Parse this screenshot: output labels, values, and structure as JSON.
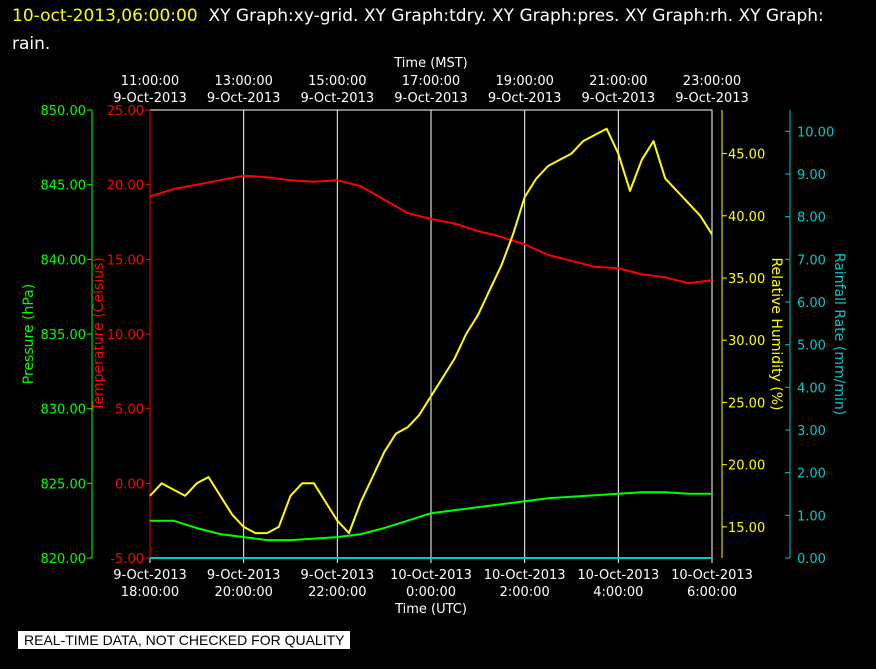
{
  "header": {
    "timestamp": "10-oct-2013,06:00:00",
    "title": "XY Graph:xy-grid.  XY Graph:tdry.  XY Graph:pres.  XY Graph:rh.  XY Graph: rain."
  },
  "banner": "REAL-TIME DATA, NOT CHECKED FOR QUALITY",
  "colors": {
    "pressure": "#00ff00",
    "temperature": "#ff0000",
    "humidity": "#ffff00",
    "rain": "#00c8c8",
    "axis": "#ffffff",
    "grid": "#ffffff"
  },
  "chart_data": {
    "type": "line",
    "top_axis": {
      "title": "Time (MST)",
      "ticks": [
        {
          "time": "11:00:00",
          "date": "9-Oct-2013"
        },
        {
          "time": "13:00:00",
          "date": "9-Oct-2013"
        },
        {
          "time": "15:00:00",
          "date": "9-Oct-2013"
        },
        {
          "time": "17:00:00",
          "date": "9-Oct-2013"
        },
        {
          "time": "19:00:00",
          "date": "9-Oct-2013"
        },
        {
          "time": "21:00:00",
          "date": "9-Oct-2013"
        },
        {
          "time": "23:00:00",
          "date": "9-Oct-2013"
        }
      ]
    },
    "bottom_axis": {
      "title": "Time (UTC)",
      "ticks": [
        {
          "date": "9-Oct-2013",
          "time": "18:00:00"
        },
        {
          "date": "9-Oct-2013",
          "time": "20:00:00"
        },
        {
          "date": "9-Oct-2013",
          "time": "22:00:00"
        },
        {
          "date": "10-Oct-2013",
          "time": "0:00:00"
        },
        {
          "date": "10-Oct-2013",
          "time": "2:00:00"
        },
        {
          "date": "10-Oct-2013",
          "time": "4:00:00"
        },
        {
          "date": "10-Oct-2013",
          "time": "6:00:00"
        }
      ]
    },
    "x_range_utc_hours": [
      18,
      30
    ],
    "axes": {
      "pressure": {
        "label": "Pressure (hPa)",
        "range": [
          820,
          850
        ],
        "ticks": [
          "820.00",
          "825.00",
          "830.00",
          "835.00",
          "840.00",
          "845.00",
          "850.00"
        ]
      },
      "temperature": {
        "label": "Temperature (Celsius)",
        "range": [
          -5,
          25
        ],
        "ticks": [
          "-5.00",
          "0.00",
          "5.00",
          "10.00",
          "15.00",
          "20.00",
          "25.00"
        ]
      },
      "humidity": {
        "label": "Relative Humidity (%)",
        "range": [
          12.5,
          48.5
        ],
        "ticks": [
          "15.00",
          "20.00",
          "25.00",
          "30.00",
          "35.00",
          "40.00",
          "45.00"
        ]
      },
      "rain": {
        "label": "Rainfall Rate (mm/min)",
        "range": [
          0,
          10.5
        ],
        "ticks": [
          "0.00",
          "1.00",
          "2.00",
          "3.00",
          "4.00",
          "5.00",
          "6.00",
          "7.00",
          "8.00",
          "9.00",
          "10.00"
        ]
      }
    },
    "series": [
      {
        "name": "tdry",
        "axis": "temperature",
        "x": [
          18.0,
          18.5,
          19.0,
          19.5,
          20.0,
          20.5,
          21.0,
          21.5,
          22.0,
          22.5,
          23.0,
          23.5,
          24.0,
          24.5,
          25.0,
          25.5,
          26.0,
          26.5,
          27.0,
          27.5,
          28.0,
          28.5,
          29.0,
          29.5,
          30.0
        ],
        "y": [
          19.2,
          19.7,
          20.0,
          20.3,
          20.6,
          20.5,
          20.3,
          20.2,
          20.3,
          19.9,
          19.0,
          18.1,
          17.7,
          17.4,
          16.9,
          16.5,
          16.0,
          15.3,
          14.9,
          14.5,
          14.4,
          14.0,
          13.8,
          13.4,
          13.6
        ]
      },
      {
        "name": "pres",
        "axis": "pressure",
        "x": [
          18.0,
          18.5,
          19.0,
          19.5,
          20.0,
          20.5,
          21.0,
          21.5,
          22.0,
          22.5,
          23.0,
          23.5,
          24.0,
          24.5,
          25.0,
          25.5,
          26.0,
          26.5,
          27.0,
          27.5,
          28.0,
          28.5,
          29.0,
          29.5,
          30.0
        ],
        "y": [
          822.5,
          822.5,
          822.0,
          821.6,
          821.4,
          821.2,
          821.2,
          821.3,
          821.4,
          821.6,
          822.0,
          822.5,
          823.0,
          823.2,
          823.4,
          823.6,
          823.8,
          824.0,
          824.1,
          824.2,
          824.3,
          824.4,
          824.4,
          824.3,
          824.3
        ]
      },
      {
        "name": "rh",
        "axis": "humidity",
        "x": [
          18.0,
          18.25,
          18.5,
          18.75,
          19.0,
          19.25,
          19.5,
          19.75,
          20.0,
          20.25,
          20.5,
          20.75,
          21.0,
          21.25,
          21.5,
          21.75,
          22.0,
          22.25,
          22.5,
          22.75,
          23.0,
          23.25,
          23.5,
          23.75,
          24.0,
          24.25,
          24.5,
          24.75,
          25.0,
          25.25,
          25.5,
          25.75,
          26.0,
          26.25,
          26.5,
          26.75,
          27.0,
          27.25,
          27.5,
          27.75,
          28.0,
          28.25,
          28.5,
          28.75,
          29.0,
          29.25,
          29.5,
          29.75,
          30.0
        ],
        "y": [
          17.5,
          18.5,
          18.0,
          17.5,
          18.5,
          19.0,
          17.5,
          16.0,
          15.0,
          14.5,
          14.5,
          15.0,
          17.5,
          18.5,
          18.5,
          17.0,
          15.5,
          14.5,
          17.0,
          19.0,
          21.0,
          22.5,
          23.0,
          24.0,
          25.5,
          27.0,
          28.5,
          30.5,
          32.0,
          34.0,
          36.0,
          38.5,
          41.5,
          43.0,
          44.0,
          44.5,
          45.0,
          46.0,
          46.5,
          47.0,
          45.0,
          42.0,
          44.5,
          46.0,
          43.0,
          42.0,
          41.0,
          40.0,
          38.5
        ]
      },
      {
        "name": "rain",
        "axis": "rain",
        "x": [
          18.0,
          30.0
        ],
        "y": [
          0.0,
          0.0
        ]
      }
    ]
  }
}
